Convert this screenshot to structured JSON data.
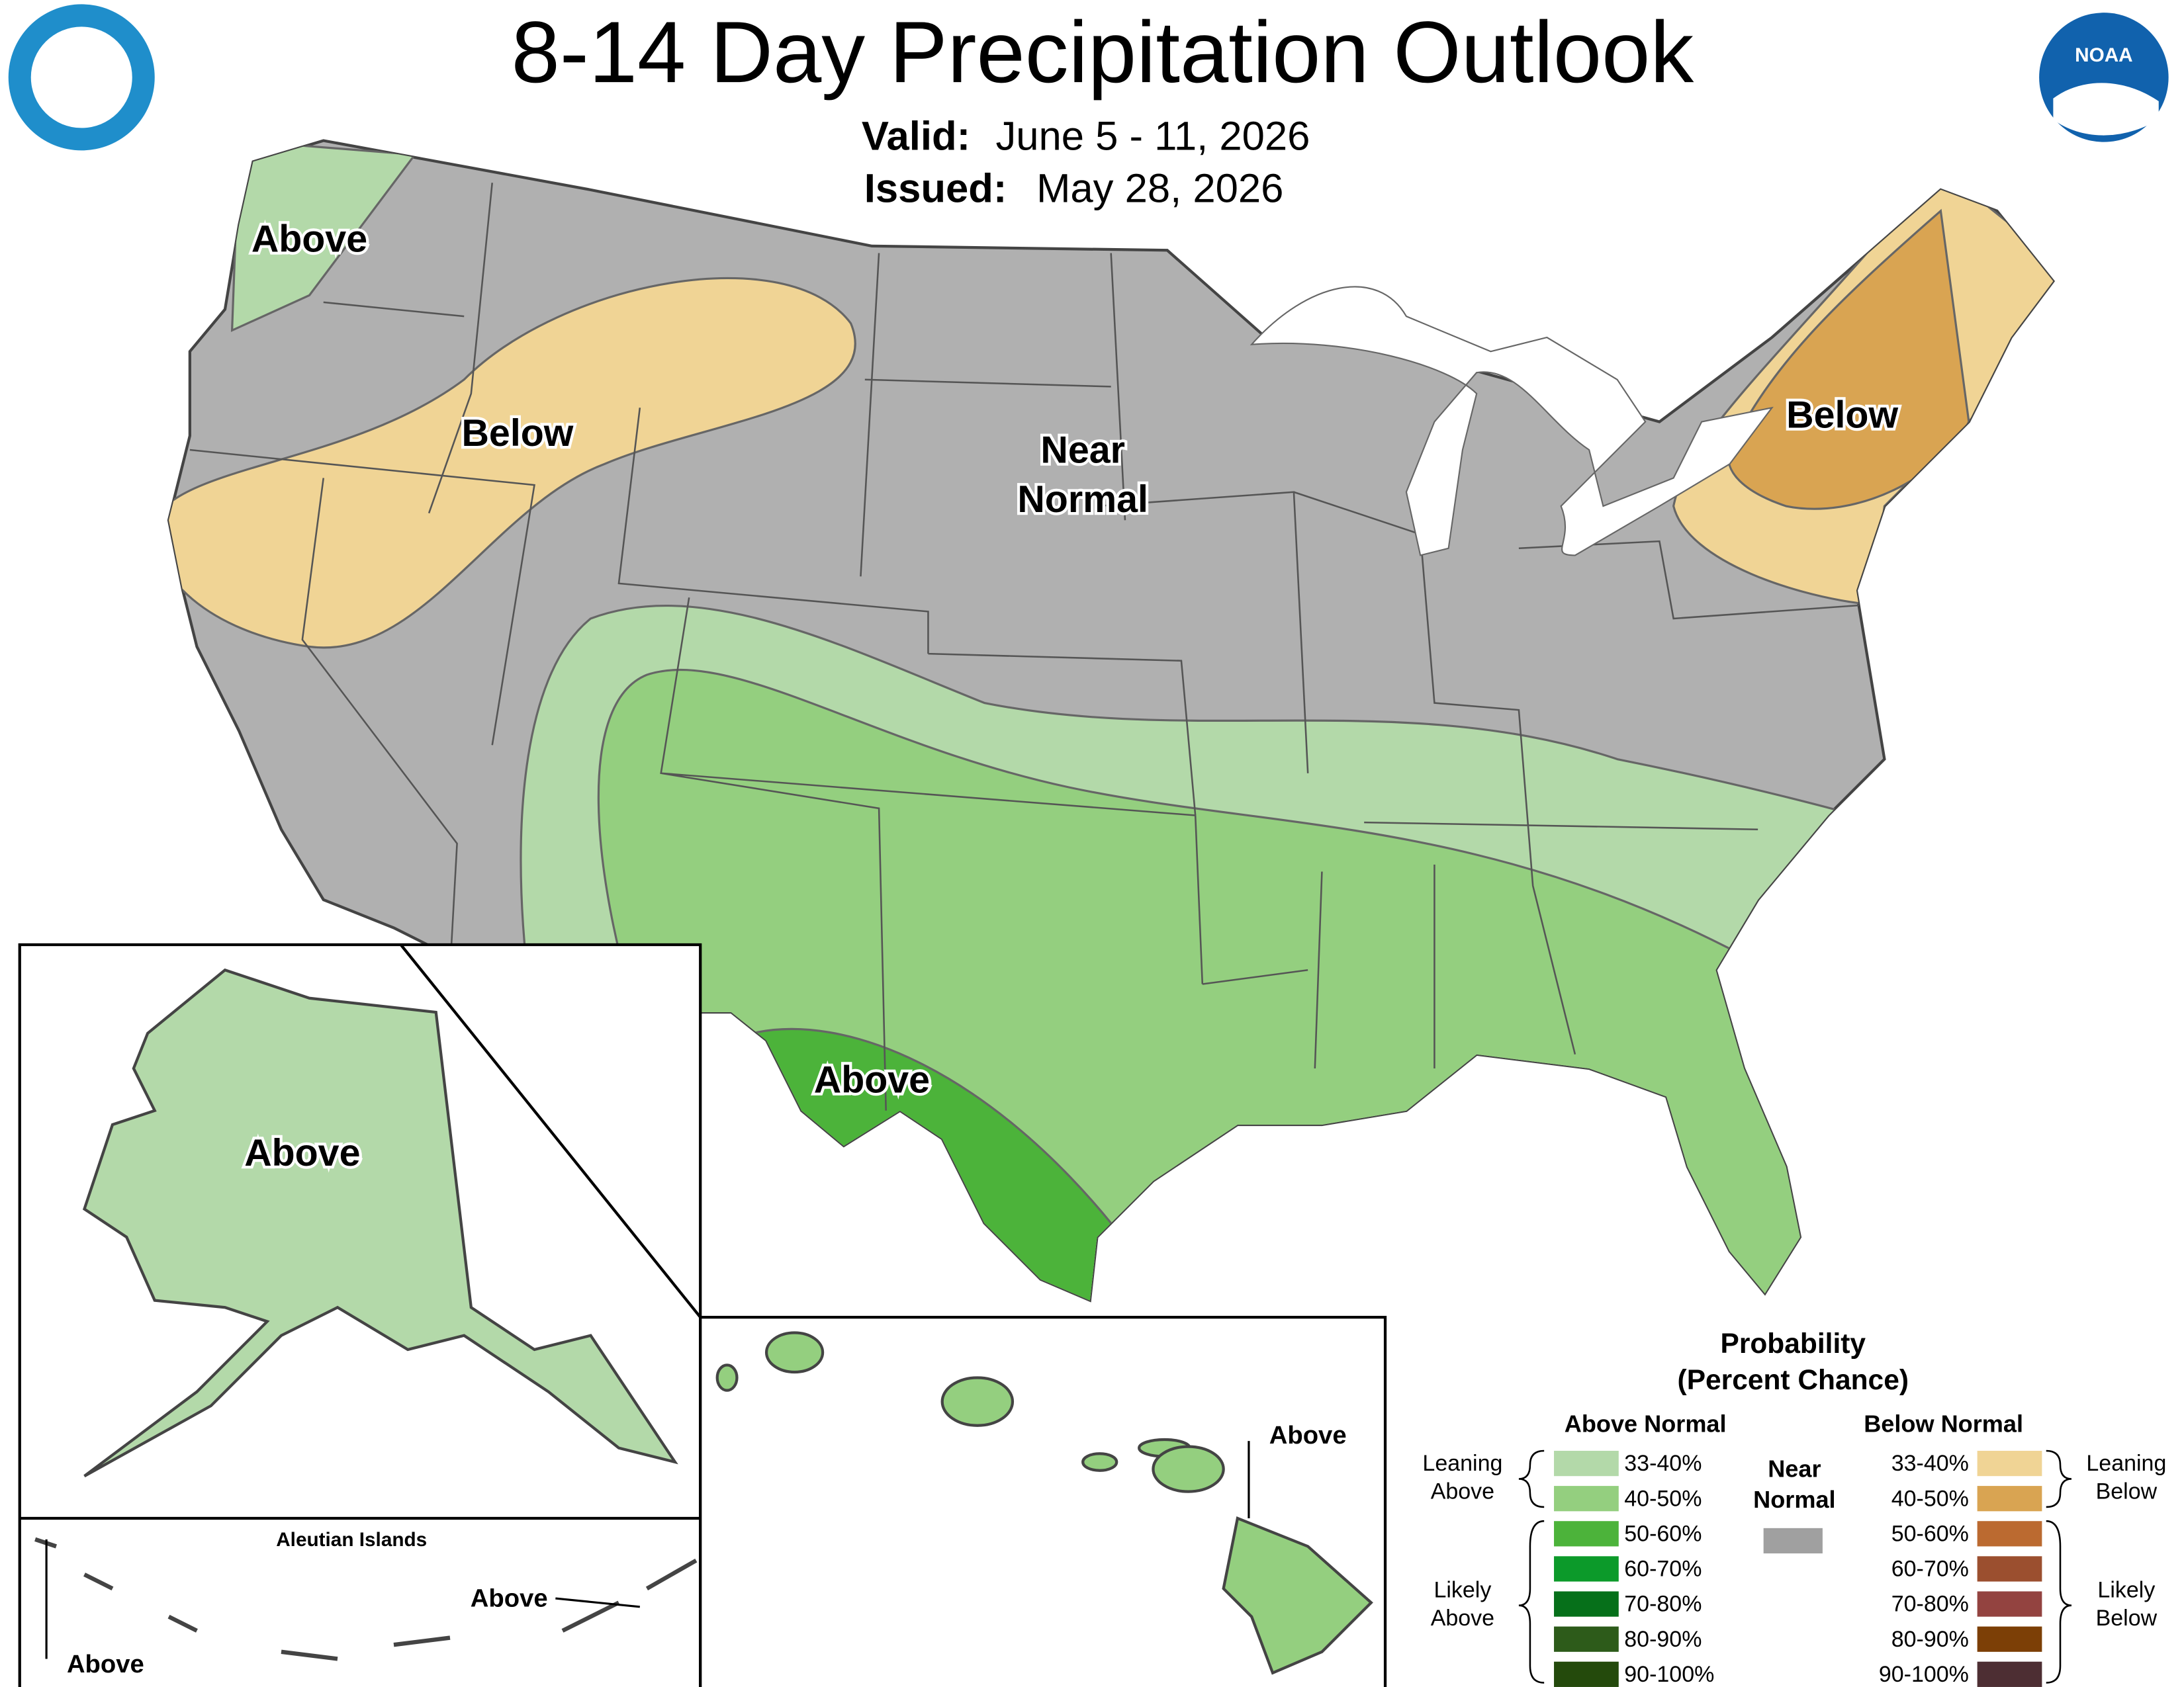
{
  "header": {
    "title": "8-14 Day Precipitation Outlook",
    "valid_label": "Valid:",
    "valid": "June 5 - 11, 2026",
    "issued_label": "Issued:",
    "issued": "May 28, 2026",
    "noaa": "NOAA"
  },
  "map_labels": {
    "northwest": "Above",
    "west": "Below",
    "central": [
      "Near",
      "Normal"
    ],
    "northeast": "Below",
    "texas": "Above"
  },
  "insets": {
    "alaska": "Above",
    "aleutian_title": "Aleutian Islands",
    "aleutian_west": "Above",
    "aleutian_east": "Above",
    "hawaii": "Above"
  },
  "legend": {
    "title": [
      "Probability",
      "(Percent Chance)"
    ],
    "above_heading": "Above Normal",
    "below_heading": "Below Normal",
    "near_normal": [
      "Near",
      "Normal"
    ],
    "near_normal_color": "#a0a0a0",
    "leaning_above": [
      "Leaning",
      "Above"
    ],
    "likely_above": [
      "Likely",
      "Above"
    ],
    "leaning_below": [
      "Leaning",
      "Below"
    ],
    "likely_below": [
      "Likely",
      "Below"
    ],
    "above": [
      {
        "label": "33-40%",
        "color": "#b3d9a9"
      },
      {
        "label": "40-50%",
        "color": "#94cf7f"
      },
      {
        "label": "50-60%",
        "color": "#4cb33a"
      },
      {
        "label": "60-70%",
        "color": "#0c9a2a"
      },
      {
        "label": "70-80%",
        "color": "#06701a"
      },
      {
        "label": "80-90%",
        "color": "#2d5b1a"
      },
      {
        "label": "90-100%",
        "color": "#244a0c"
      }
    ],
    "below": [
      {
        "label": "33-40%",
        "color": "#f0d495"
      },
      {
        "label": "40-50%",
        "color": "#d9a452"
      },
      {
        "label": "50-60%",
        "color": "#bb6a30"
      },
      {
        "label": "60-70%",
        "color": "#9b4f2f"
      },
      {
        "label": "70-80%",
        "color": "#934340"
      },
      {
        "label": "80-90%",
        "color": "#7c3f06"
      },
      {
        "label": "90-100%",
        "color": "#4d2e33"
      }
    ]
  }
}
